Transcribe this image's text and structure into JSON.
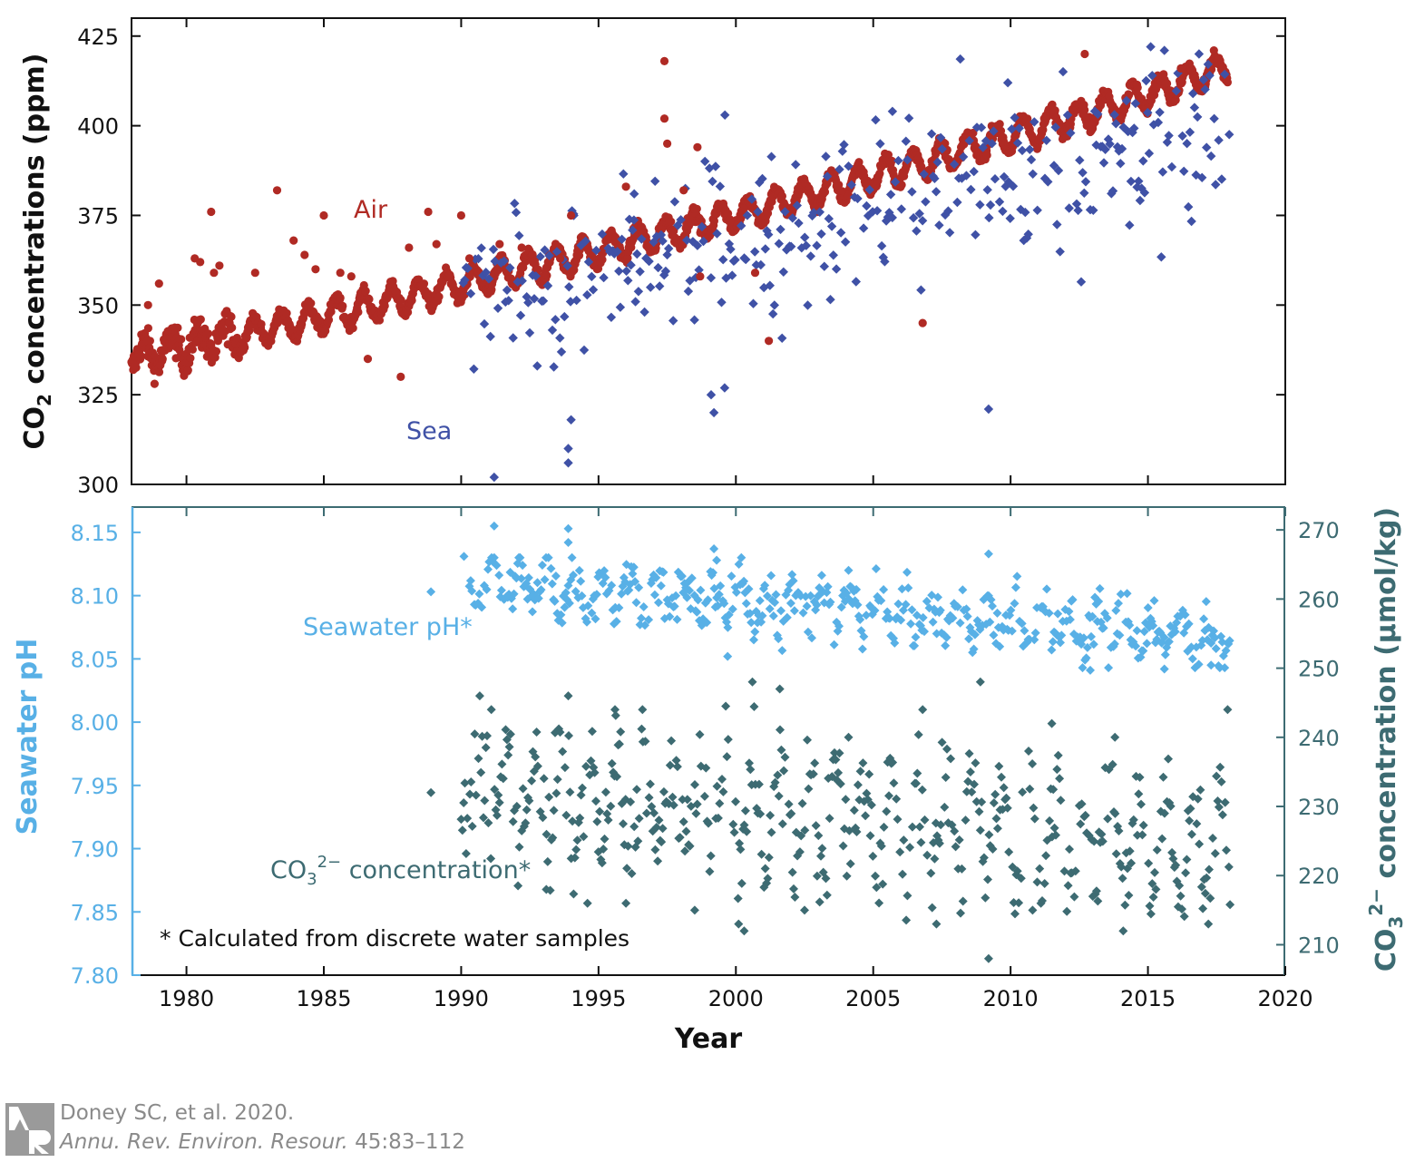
{
  "chart_data": [
    {
      "type": "scatter",
      "panel": "top",
      "xlabel": "",
      "ylabel": "CO2 concentrations (ppm)",
      "ylabel_parts": {
        "pre": "CO",
        "sub": "2",
        "post": " concentrations (ppm)"
      },
      "xlim": [
        1978,
        2020
      ],
      "ylim": [
        300,
        430
      ],
      "xticks": [
        1980,
        1985,
        1990,
        1995,
        2000,
        2005,
        2010,
        2015,
        2020
      ],
      "yticks": [
        300,
        325,
        350,
        375,
        400,
        425
      ],
      "grid": false,
      "colors": {
        "air": "#b02a24",
        "sea": "#3f51a6"
      },
      "series": [
        {
          "name": "Air",
          "color": "#b02a24",
          "trend": {
            "start_year": 1978.0,
            "end_year": 2017.9,
            "start_value": 335.5,
            "annual_growth": 1.54,
            "growth_acceleration": 0.012,
            "seasonal_amplitude": 3.8
          },
          "outliers": [
            [
              1978.6,
              350
            ],
            [
              1979.0,
              356
            ],
            [
              1980.3,
              363
            ],
            [
              1980.5,
              362
            ],
            [
              1980.9,
              376
            ],
            [
              1981.0,
              359
            ],
            [
              1981.2,
              361
            ],
            [
              1982.5,
              359
            ],
            [
              1983.3,
              382
            ],
            [
              1983.9,
              368
            ],
            [
              1984.3,
              364
            ],
            [
              1984.7,
              360
            ],
            [
              1985.0,
              375
            ],
            [
              1985.6,
              359
            ],
            [
              1986.0,
              358
            ],
            [
              1986.6,
              335
            ],
            [
              1987.8,
              330
            ],
            [
              1988.1,
              366
            ],
            [
              1988.8,
              376
            ],
            [
              1989.1,
              367
            ],
            [
              1990.0,
              375
            ],
            [
              1990.3,
              363
            ],
            [
              1991.4,
              367
            ],
            [
              1992.2,
              366
            ],
            [
              1992.6,
              364
            ],
            [
              1993.6,
              363
            ],
            [
              1994.0,
              375
            ],
            [
              1996.0,
              383
            ],
            [
              1997.4,
              418
            ],
            [
              1997.4,
              402
            ],
            [
              1997.5,
              395
            ],
            [
              1998.1,
              382
            ],
            [
              1998.6,
              394
            ],
            [
              1998.7,
              358
            ],
            [
              2000.7,
              359
            ],
            [
              2001.2,
              340
            ],
            [
              2006.8,
              345
            ],
            [
              2012.7,
              420
            ],
            [
              2016.2,
              416
            ],
            [
              2017.4,
              421
            ]
          ]
        },
        {
          "name": "Sea",
          "color": "#3f51a6",
          "first_year": 1990,
          "last_year": 2018,
          "trend": {
            "base_year": 1990.0,
            "start_value": 350.5,
            "annual_growth": 1.75,
            "scatter_spread": 14
          },
          "outliers": [
            [
              1991.2,
              302
            ],
            [
              1993.9,
              306
            ],
            [
              1993.9,
              310
            ],
            [
              1994.0,
              318
            ],
            [
              1999.2,
              320
            ],
            [
              1999.1,
              325
            ],
            [
              2009.2,
              321
            ],
            [
              1994.1,
              375
            ],
            [
              1996.3,
              381
            ],
            [
              1999.6,
              403
            ],
            [
              2005.7,
              404
            ],
            [
              2009.9,
              412
            ],
            [
              2015.1,
              422
            ],
            [
              2015.6,
              421
            ]
          ]
        }
      ],
      "annotations": [
        {
          "text": "Air",
          "x": 1986.8,
          "y": 376,
          "color": "#b02a24"
        },
        {
          "text": "Sea",
          "x": 1988.8,
          "y": 315,
          "color": "#3f51a6"
        }
      ]
    },
    {
      "type": "scatter",
      "panel": "bottom",
      "xlabel": "Year",
      "ylabel_left": "Seawater pH",
      "ylabel_right": "CO32− concentration (μmol/kg)",
      "ylabel_right_parts": {
        "pre": "CO",
        "sub": "3",
        "sup": "2−",
        "post": " concentration (μmol/kg)"
      },
      "xlim": [
        1978,
        2020
      ],
      "ylim_left": [
        7.8,
        8.17
      ],
      "ylim_right": [
        205.6,
        273.3
      ],
      "xticks": [
        1980,
        1985,
        1990,
        1995,
        2000,
        2005,
        2010,
        2015,
        2020
      ],
      "yticks_left": [
        7.8,
        7.85,
        7.9,
        7.95,
        8.0,
        8.05,
        8.1,
        8.15
      ],
      "yticks_left_labels": [
        "7.80",
        "7.85",
        "7.90",
        "7.95",
        "8.00",
        "8.05",
        "8.10",
        "8.15"
      ],
      "yticks_right": [
        210,
        220,
        230,
        240,
        250,
        260,
        270
      ],
      "grid": false,
      "colors": {
        "ph": "#58b0e6",
        "co3": "#3d6b72"
      },
      "series": [
        {
          "name": "Seawater pH*",
          "axis": "left",
          "color": "#58b0e6",
          "first_year": 1990.3,
          "last_year": 2018.0,
          "trend": {
            "base_year": 1990.0,
            "start_value": 8.112,
            "annual_change": -0.0016,
            "seasonal_amplitude": 0.014,
            "scatter_spread": 0.018
          },
          "outliers": [
            [
              1988.9,
              8.103
            ],
            [
              1990.1,
              8.131
            ],
            [
              1991.2,
              8.155
            ],
            [
              1993.9,
              8.153
            ],
            [
              1993.9,
              8.142
            ],
            [
              1999.2,
              8.137
            ],
            [
              1999.3,
              8.128
            ],
            [
              2004.1,
              8.12
            ],
            [
              2009.2,
              8.133
            ],
            [
              1999.7,
              8.052
            ],
            [
              2012.9,
              8.041
            ],
            [
              2015.6,
              8.042
            ],
            [
              2017.3,
              8.045
            ]
          ]
        },
        {
          "name": "CO32− concentration*",
          "axis": "right",
          "color": "#3d6b72",
          "first_year": 1990.0,
          "last_year": 2018.0,
          "trend": {
            "base_year": 1990.0,
            "start_value": 232.5,
            "annual_change": -0.3,
            "seasonal_amplitude": 7,
            "scatter_spread": 6
          },
          "outliers": [
            [
              1988.9,
              232
            ],
            [
              1991.1,
              244
            ],
            [
              1993.9,
              246
            ],
            [
              1995.6,
              244
            ],
            [
              1996.6,
              244
            ],
            [
              2000.6,
              248
            ],
            [
              2001.6,
              247
            ],
            [
              2004.1,
              240
            ],
            [
              2006.8,
              244
            ],
            [
              2008.9,
              248
            ],
            [
              2011.5,
              242
            ],
            [
              2013.8,
              240
            ],
            [
              2017.9,
              244
            ],
            [
              1993.1,
              218
            ],
            [
              1994.6,
              216
            ],
            [
              1996.0,
              216
            ],
            [
              1998.5,
              215
            ],
            [
              2000.1,
              213
            ],
            [
              2000.3,
              212
            ],
            [
              2002.5,
              215
            ],
            [
              2007.3,
              213
            ],
            [
              2009.2,
              208
            ],
            [
              2010.8,
              215
            ],
            [
              2014.1,
              212
            ],
            [
              2017.2,
              213
            ]
          ]
        }
      ],
      "annotations": [
        {
          "text": "Seawater pH*",
          "x": 1984.4,
          "y": 8.07,
          "color": "#58b0e6"
        },
        {
          "text_parts": {
            "pre": "CO",
            "sub": "3",
            "sup": "2−",
            "post": " concentration*"
          },
          "x": 1990.4,
          "y": 7.89,
          "color": "#3d6b72"
        },
        {
          "text": "* Calculated from discrete water samples",
          "x": 1979.3,
          "y": 7.83,
          "color": "#111111"
        }
      ]
    }
  ],
  "credit": {
    "logo_letters": "AR",
    "line1": "Doney SC, et al. 2020.",
    "journal": "Annu. Rev. Environ. Resour.",
    "pages": " 45:83–112"
  }
}
